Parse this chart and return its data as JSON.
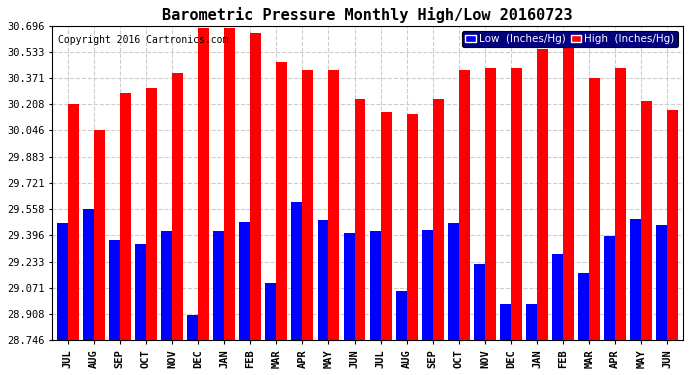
{
  "title": "Barometric Pressure Monthly High/Low 20160723",
  "copyright": "Copyright 2016 Cartronics.com",
  "months": [
    "JUL",
    "AUG",
    "SEP",
    "OCT",
    "NOV",
    "DEC",
    "JAN",
    "FEB",
    "MAR",
    "APR",
    "MAY",
    "JUN",
    "JUL",
    "AUG",
    "SEP",
    "OCT",
    "NOV",
    "DEC",
    "JAN",
    "FEB",
    "MAR",
    "APR",
    "MAY",
    "JUN"
  ],
  "low_values": [
    29.47,
    29.56,
    29.37,
    29.34,
    29.42,
    28.9,
    29.42,
    29.48,
    29.1,
    29.6,
    29.49,
    29.41,
    29.42,
    29.05,
    29.43,
    29.47,
    29.22,
    28.97,
    28.97,
    29.28,
    29.16,
    29.39,
    29.5,
    29.46
  ],
  "high_values": [
    30.21,
    30.05,
    30.28,
    30.31,
    30.4,
    30.68,
    30.68,
    30.65,
    30.47,
    30.42,
    30.42,
    30.24,
    30.16,
    30.15,
    30.24,
    30.42,
    30.43,
    30.43,
    30.55,
    30.6,
    30.37,
    30.43,
    30.23,
    30.17
  ],
  "low_color": "#0000ff",
  "high_color": "#ff0000",
  "bg_color": "#ffffff",
  "grid_color": "#cccccc",
  "ymin": 28.746,
  "ymax": 30.696,
  "yticks": [
    28.746,
    28.908,
    29.071,
    29.233,
    29.396,
    29.558,
    29.721,
    29.883,
    30.046,
    30.208,
    30.371,
    30.533,
    30.696
  ],
  "title_fontsize": 11,
  "axis_fontsize": 7.5,
  "copyright_fontsize": 7,
  "legend_low_label": "Low  (Inches/Hg)",
  "legend_high_label": "High  (Inches/Hg)"
}
